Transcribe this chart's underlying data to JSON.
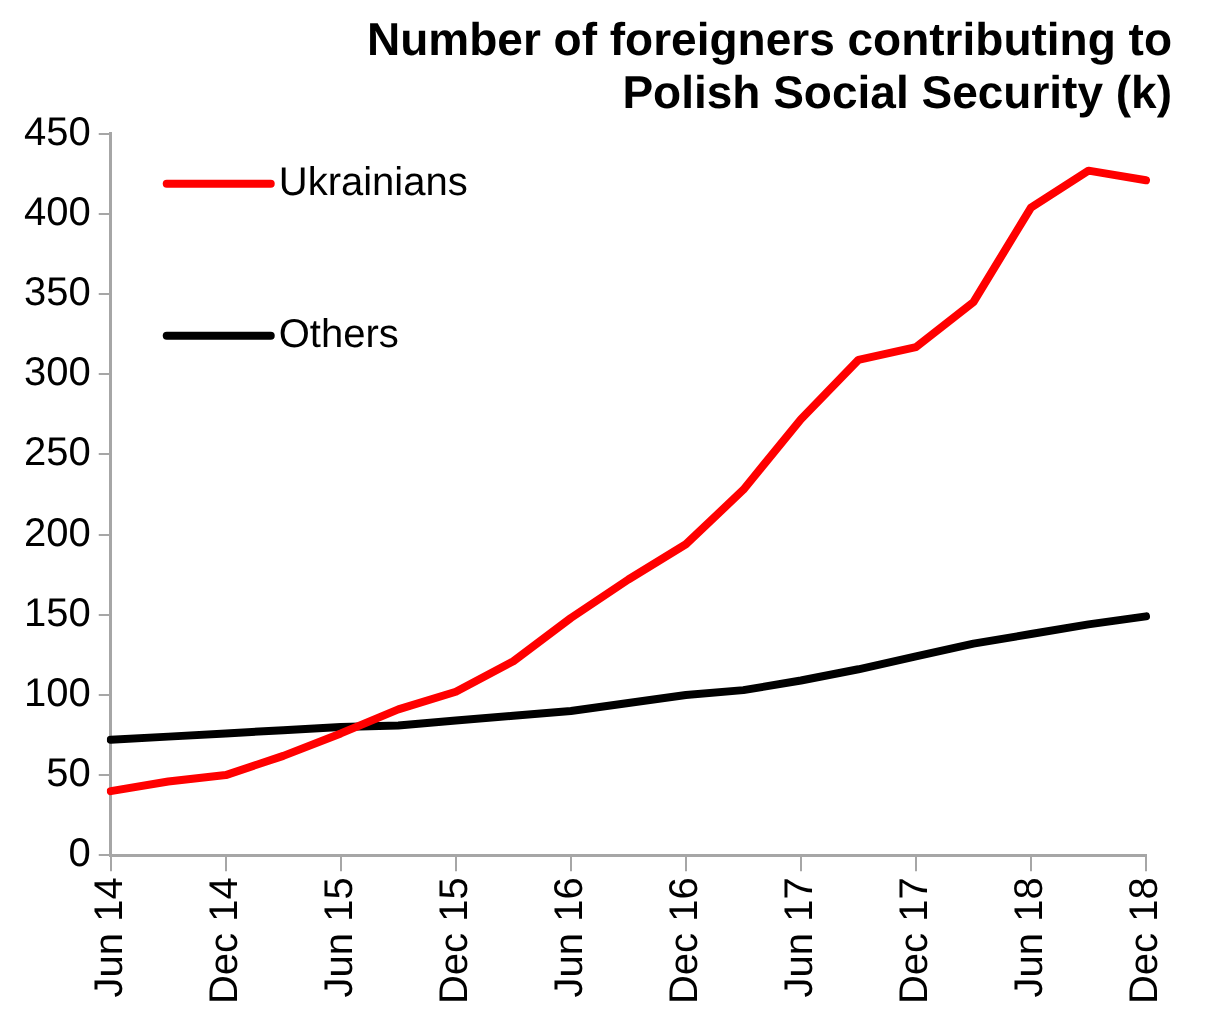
{
  "chart_data": {
    "type": "line",
    "title": "Number of foreigners contributing to Polish Social Security (k)",
    "categories": [
      "Jun 14",
      null,
      "Dec 14",
      null,
      "Jun 15",
      null,
      "Dec 15",
      null,
      "Jun 16",
      null,
      "Dec 16",
      null,
      "Jun 17",
      null,
      "Dec 17",
      null,
      "Jun 18",
      null,
      "Dec 18"
    ],
    "series": [
      {
        "name": "Ukrainians",
        "color": "#ff0000",
        "values": [
          40,
          46,
          50,
          62,
          76,
          91,
          102,
          121,
          148,
          172,
          194,
          228,
          272,
          309,
          317,
          345,
          404,
          427,
          421
        ]
      },
      {
        "name": "Others",
        "color": "#000000",
        "values": [
          72,
          74,
          76,
          78,
          80,
          81,
          84,
          87,
          90,
          95,
          100,
          103,
          109,
          116,
          124,
          132,
          138,
          144,
          149
        ]
      }
    ],
    "ylim": [
      0,
      450
    ],
    "yticks": [
      0,
      50,
      100,
      150,
      200,
      250,
      300,
      350,
      400,
      450
    ],
    "grid": false,
    "legend": "top left",
    "marker": "none",
    "line_style": "solid"
  }
}
